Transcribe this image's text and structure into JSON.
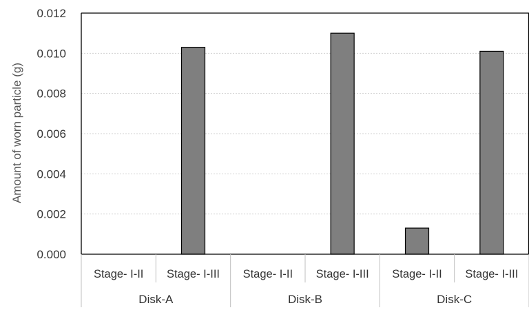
{
  "chart_data": {
    "type": "bar",
    "ylabel": "Amount of worn particle (g)",
    "ylim": [
      0,
      0.012
    ],
    "y_ticks": [
      "0.000",
      "0.002",
      "0.004",
      "0.006",
      "0.008",
      "0.010",
      "0.012"
    ],
    "grid": true,
    "categories": [
      "Stage- I-II",
      "Stage- I-III",
      "Stage- I-II",
      "Stage- I-III",
      "Stage- I-II",
      "Stage- I-III"
    ],
    "groups": [
      "Disk-A",
      "Disk-B",
      "Disk-C"
    ],
    "values": [
      0,
      0.0103,
      0,
      0.011,
      0.0013,
      0.0101
    ],
    "colors": {
      "bar": "#7f7f7f",
      "bar_edge": "#000000",
      "grid": "#d0d0d0"
    }
  }
}
